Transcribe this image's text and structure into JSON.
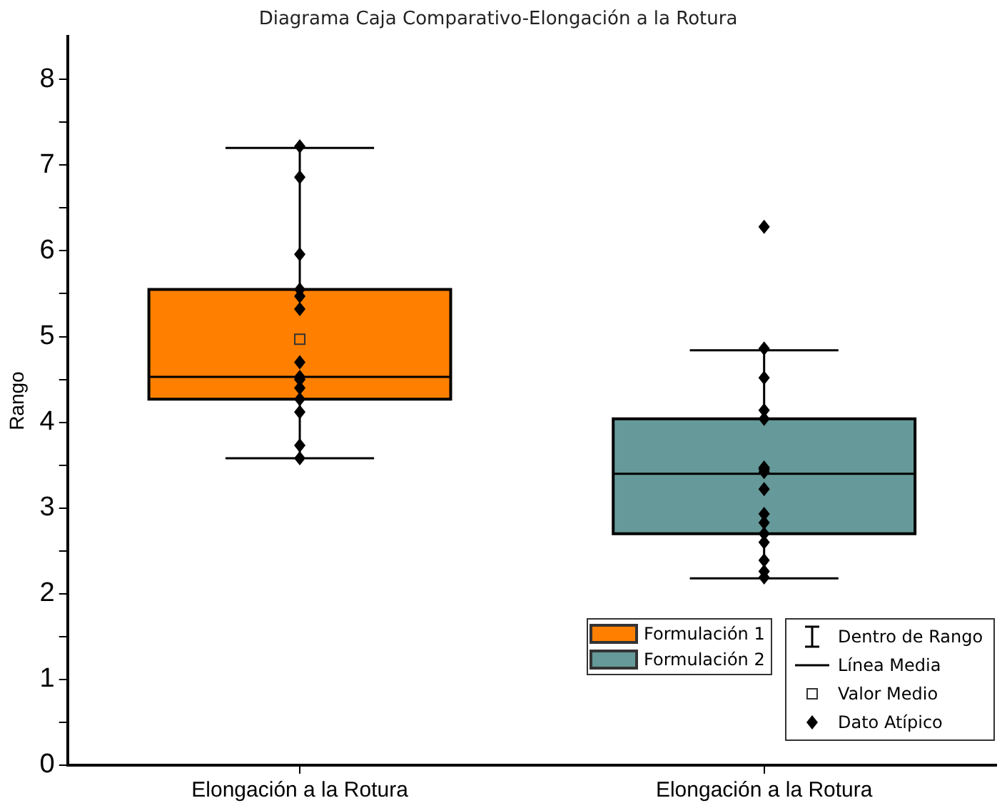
{
  "chart_data": {
    "type": "box",
    "title": "Diagrama Caja Comparativo-Elongación a la Rotura",
    "ylabel": "Rango",
    "categories": [
      "Elongación a la Rotura",
      "Elongación a la Rotura"
    ],
    "series": [
      {
        "name": "Formulación 1",
        "color": "#ff8000",
        "boxes": [
          {
            "low": 3.58,
            "q1": 4.27,
            "median": 4.53,
            "q3": 5.55,
            "high": 7.2,
            "mean": 4.97,
            "outliers": [
              7.22,
              6.86,
              5.96,
              5.55,
              5.47,
              5.32,
              4.7,
              4.5,
              4.53,
              4.4,
              4.5,
              4.27,
              4.12,
              3.73,
              3.58
            ]
          },
          null
        ]
      },
      {
        "name": "Formulación 2",
        "color": "#669999",
        "boxes": [
          null,
          {
            "low": 2.18,
            "q1": 2.7,
            "median": 3.4,
            "q3": 4.04,
            "high": 4.84,
            "outliers": [
              6.28,
              4.86,
              4.52,
              4.14,
              4.04,
              3.42,
              3.47,
              3.45,
              3.47,
              3.22,
              2.93,
              2.83,
              2.7,
              2.6,
              2.39,
              2.26,
              2.19
            ]
          }
        ]
      }
    ],
    "ylim": [
      0,
      8.5
    ],
    "yticks": [
      0,
      {
        "value": 0.5,
        "label": null
      },
      1,
      {
        "value": 1.5,
        "label": null
      },
      2,
      {
        "value": 2.5,
        "label": null
      },
      3,
      {
        "value": 3.5,
        "label": null
      },
      4,
      {
        "value": 4.5,
        "label": null
      },
      5,
      {
        "value": 5.5,
        "label": null
      },
      6,
      {
        "value": 6.5,
        "label": null
      },
      7,
      {
        "value": 7.5,
        "label": null
      },
      8
    ],
    "grid": false,
    "legend": "bottom right",
    "annotations": [
      "Dentro de Rango",
      "Línea Media",
      "Valor Medio",
      "Dato Atípico"
    ]
  }
}
